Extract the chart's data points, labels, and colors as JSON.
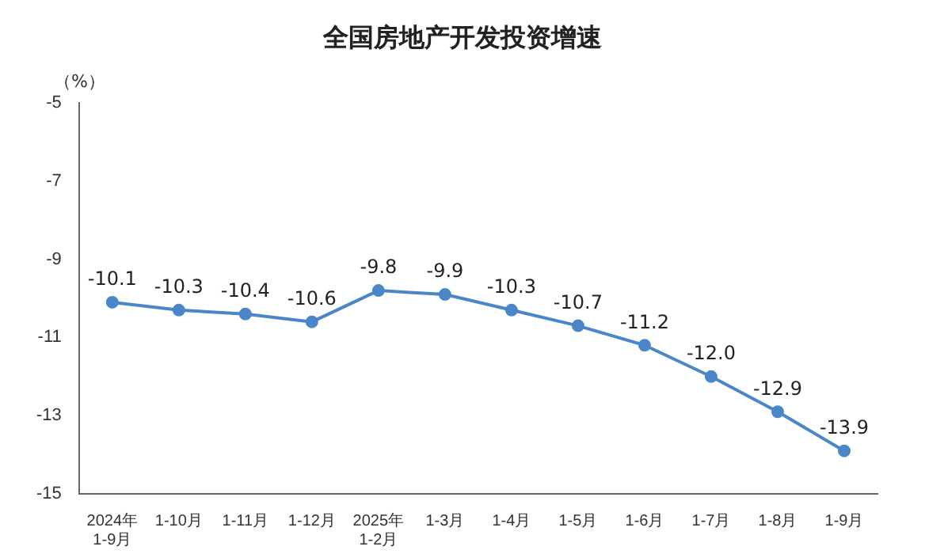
{
  "chart_data": {
    "type": "line",
    "title": "全国房地产开发投资增速",
    "ylabel": "（%）",
    "categories": [
      "2024年\n1-9月",
      "1-10月",
      "1-11月",
      "1-12月",
      "2025年\n1-2月",
      "1-3月",
      "1-4月",
      "1-5月",
      "1-6月",
      "1-7月",
      "1-8月",
      "1-9月"
    ],
    "series": [
      {
        "color": "#4a86c8",
        "values": [
          -10.1,
          -10.3,
          -10.4,
          -10.6,
          -9.8,
          -9.9,
          -10.3,
          -10.7,
          -11.2,
          -12.0,
          -12.9,
          -13.9
        ],
        "value_labels": [
          "-10.1",
          "-10.3",
          "-10.4",
          "-10.6",
          "-9.8",
          "-9.9",
          "-10.3",
          "-10.7",
          "-11.2",
          "-12.0",
          "-12.9",
          "-13.9"
        ]
      }
    ],
    "ylim": [
      -15,
      -5
    ],
    "yticks": [
      -5,
      -7,
      -9,
      -11,
      -13,
      -15
    ],
    "grid": false,
    "legend": false,
    "marker": "circle"
  }
}
